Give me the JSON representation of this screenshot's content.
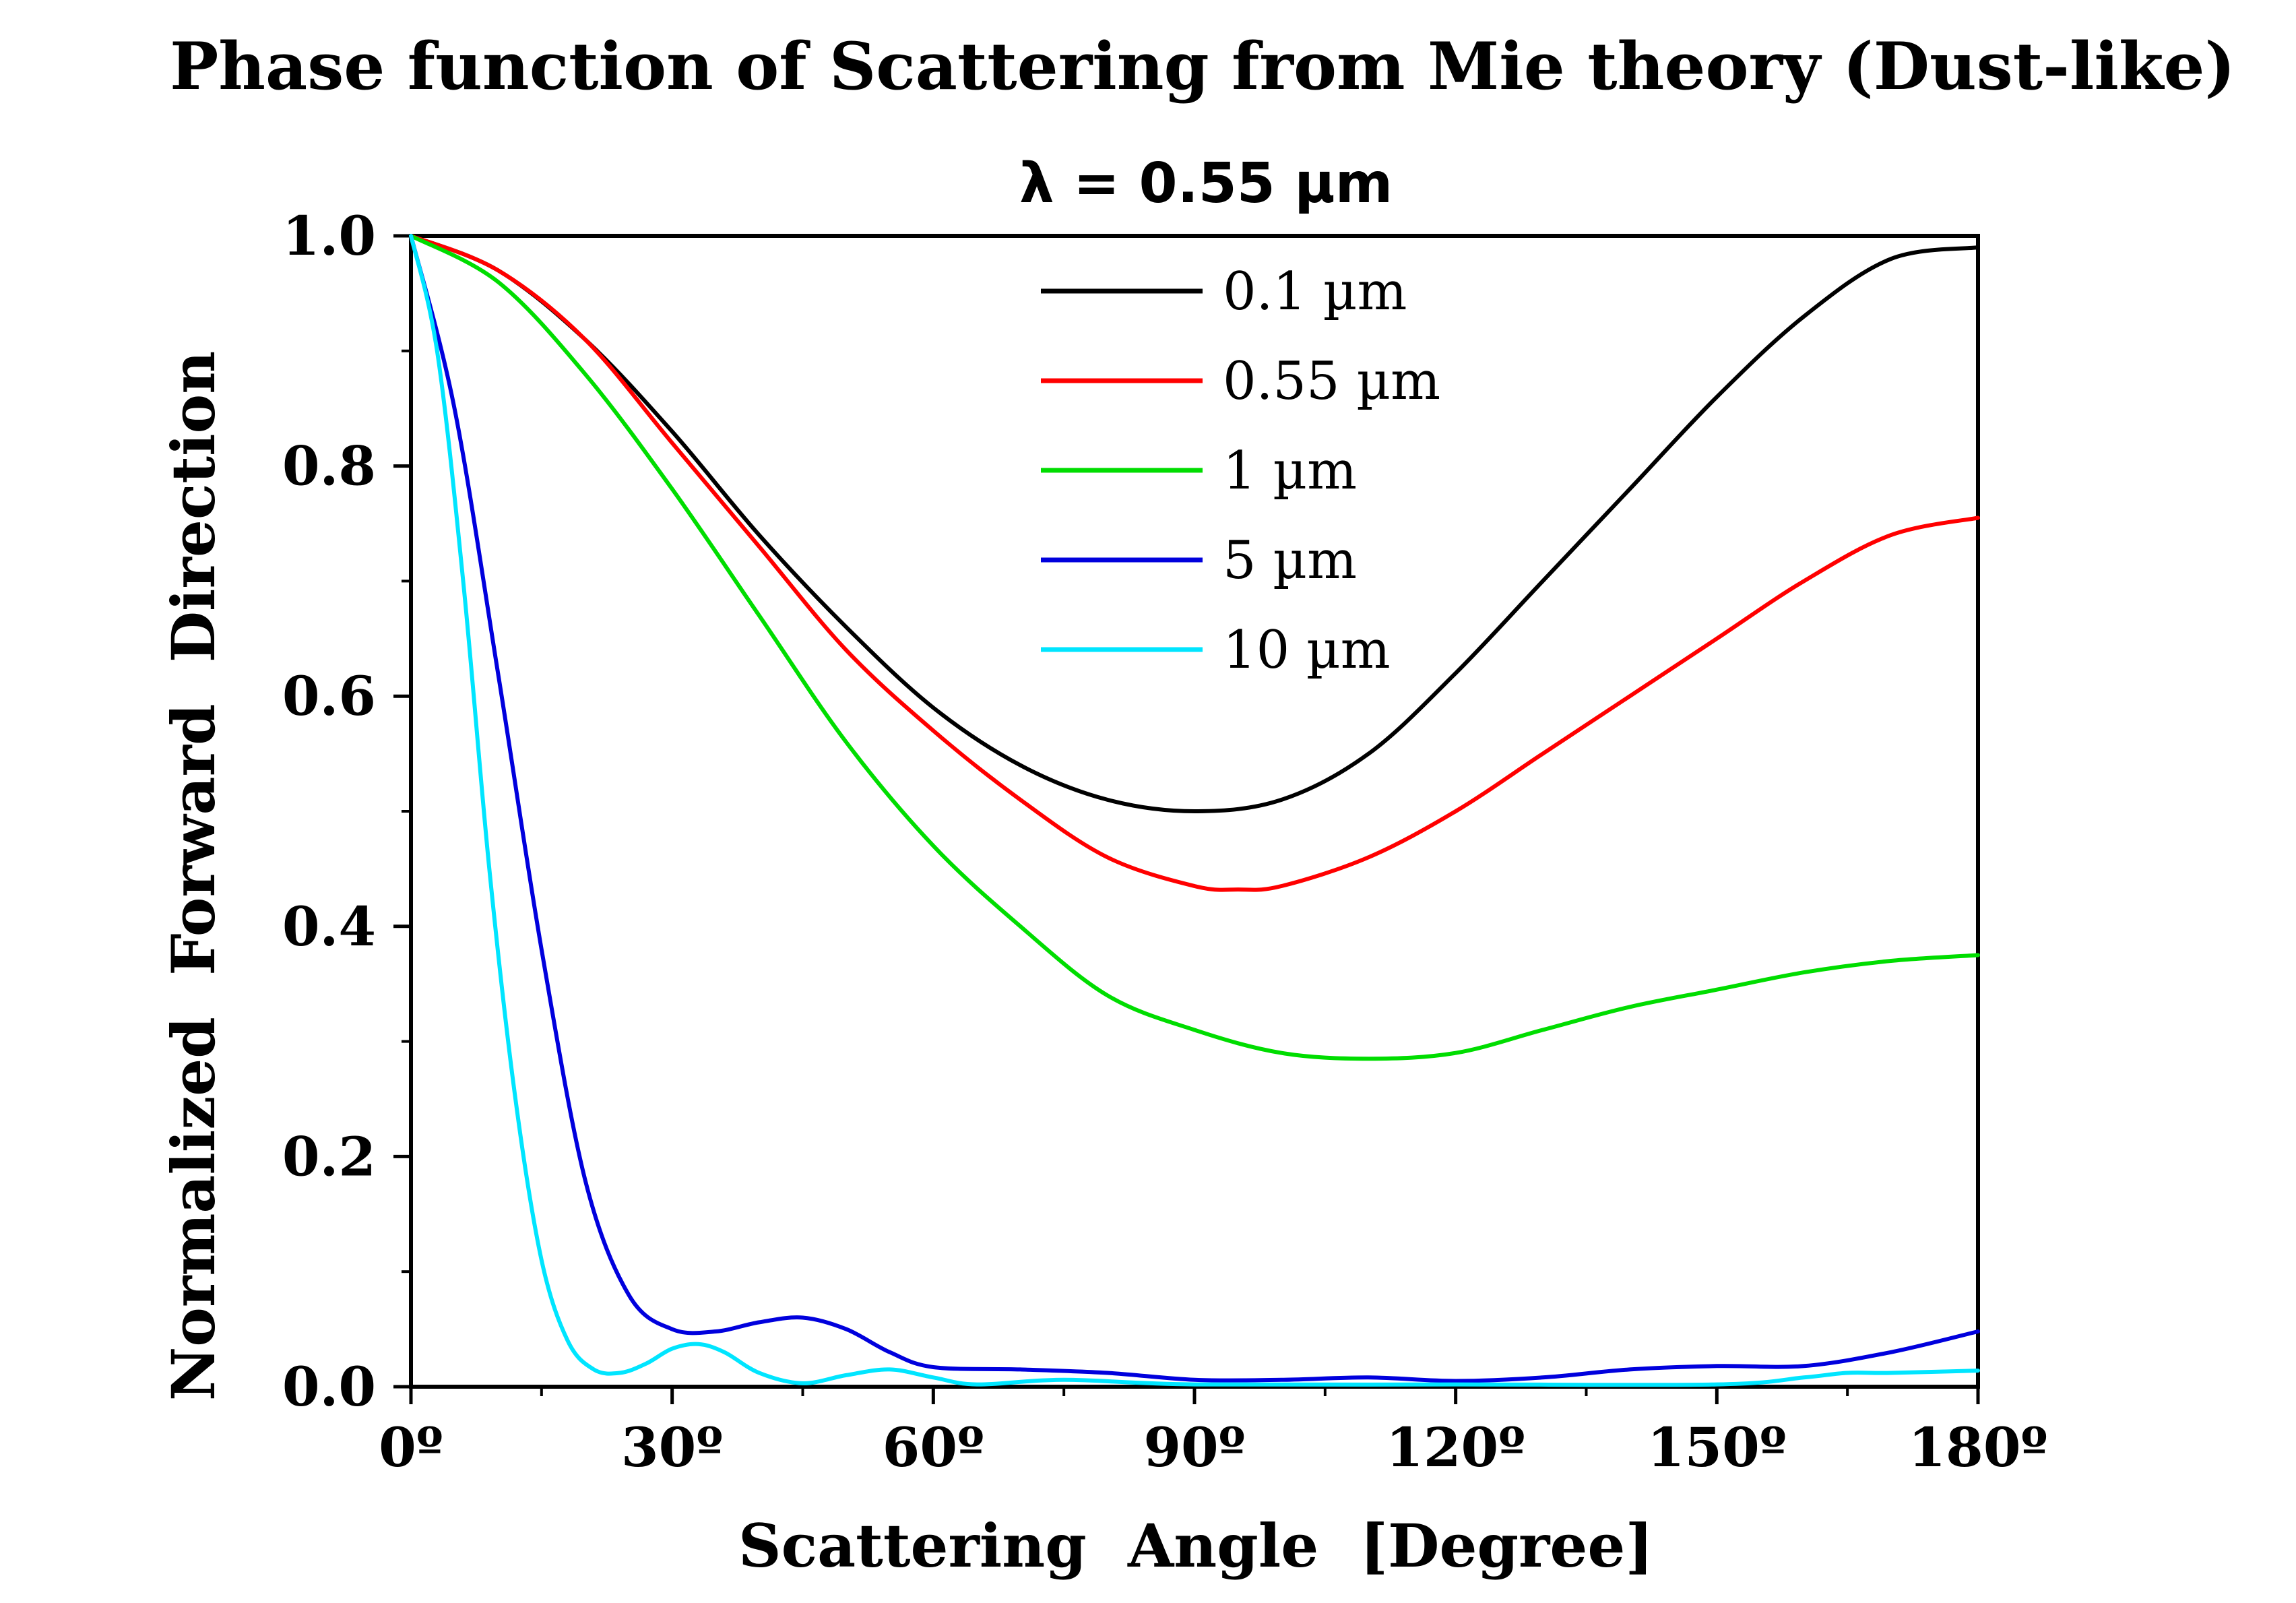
{
  "chart_data": {
    "type": "line",
    "title": "Phase function of Scattering from Mie theory (Dust-like)",
    "subtitle": "λ = 0.55 µm",
    "xlabel": "Scattering  Angle  [Degree]",
    "ylabel": "Normalized  Forward  Direction",
    "xlim": [
      0,
      180
    ],
    "ylim": [
      0,
      1.0
    ],
    "x_ticks": [
      0,
      30,
      60,
      90,
      120,
      150,
      180
    ],
    "x_tick_labels": [
      "0º",
      "30º",
      "60º",
      "90º",
      "120º",
      "150º",
      "180º"
    ],
    "y_ticks": [
      0.0,
      0.2,
      0.4,
      0.6,
      0.8,
      1.0
    ],
    "y_tick_labels": [
      "0.0",
      "0.2",
      "0.4",
      "0.6",
      "0.8",
      "1.0"
    ],
    "grid": false,
    "legend_position": "top-center",
    "series": [
      {
        "name": "0.1 µm",
        "color": "#000000",
        "x": [
          0,
          10,
          20,
          30,
          40,
          50,
          60,
          70,
          80,
          90,
          100,
          110,
          120,
          130,
          140,
          150,
          160,
          170,
          180
        ],
        "y": [
          1.0,
          0.97,
          0.91,
          0.83,
          0.74,
          0.66,
          0.59,
          0.54,
          0.51,
          0.5,
          0.51,
          0.55,
          0.62,
          0.7,
          0.78,
          0.86,
          0.93,
          0.98,
          0.99
        ]
      },
      {
        "name": "0.55 µm",
        "color": "#ff0000",
        "x": [
          0,
          10,
          20,
          30,
          40,
          50,
          60,
          70,
          80,
          90,
          95,
          100,
          110,
          120,
          130,
          140,
          150,
          160,
          170,
          180
        ],
        "y": [
          1.0,
          0.97,
          0.91,
          0.82,
          0.73,
          0.64,
          0.57,
          0.51,
          0.46,
          0.435,
          0.432,
          0.435,
          0.46,
          0.5,
          0.55,
          0.6,
          0.65,
          0.7,
          0.74,
          0.755
        ]
      },
      {
        "name": "1 µm",
        "color": "#00dd00",
        "x": [
          0,
          10,
          20,
          30,
          40,
          50,
          60,
          70,
          80,
          90,
          100,
          110,
          120,
          130,
          140,
          150,
          160,
          170,
          180
        ],
        "y": [
          1.0,
          0.96,
          0.88,
          0.78,
          0.67,
          0.56,
          0.47,
          0.4,
          0.34,
          0.31,
          0.29,
          0.285,
          0.29,
          0.31,
          0.33,
          0.345,
          0.36,
          0.37,
          0.375
        ]
      },
      {
        "name": "5 µm",
        "color": "#0000dd",
        "x": [
          0,
          5,
          10,
          15,
          20,
          25,
          30,
          35,
          40,
          45,
          50,
          55,
          60,
          70,
          80,
          90,
          100,
          110,
          120,
          130,
          140,
          150,
          160,
          170,
          180
        ],
        "y": [
          1.0,
          0.85,
          0.62,
          0.38,
          0.18,
          0.08,
          0.05,
          0.048,
          0.056,
          0.06,
          0.05,
          0.03,
          0.017,
          0.015,
          0.012,
          0.006,
          0.006,
          0.008,
          0.005,
          0.008,
          0.015,
          0.018,
          0.018,
          0.03,
          0.048
        ]
      },
      {
        "name": "10 µm",
        "color": "#00e5ff",
        "x": [
          0,
          3,
          6,
          9,
          12,
          15,
          18,
          21,
          24,
          27,
          30,
          33,
          36,
          40,
          45,
          50,
          55,
          60,
          65,
          75,
          90,
          120,
          150,
          160,
          165,
          170,
          180
        ],
        "y": [
          1.0,
          0.9,
          0.7,
          0.45,
          0.25,
          0.11,
          0.04,
          0.015,
          0.012,
          0.02,
          0.033,
          0.037,
          0.03,
          0.012,
          0.003,
          0.01,
          0.015,
          0.008,
          0.002,
          0.006,
          0.002,
          0.002,
          0.002,
          0.008,
          0.012,
          0.012,
          0.014
        ]
      }
    ]
  }
}
